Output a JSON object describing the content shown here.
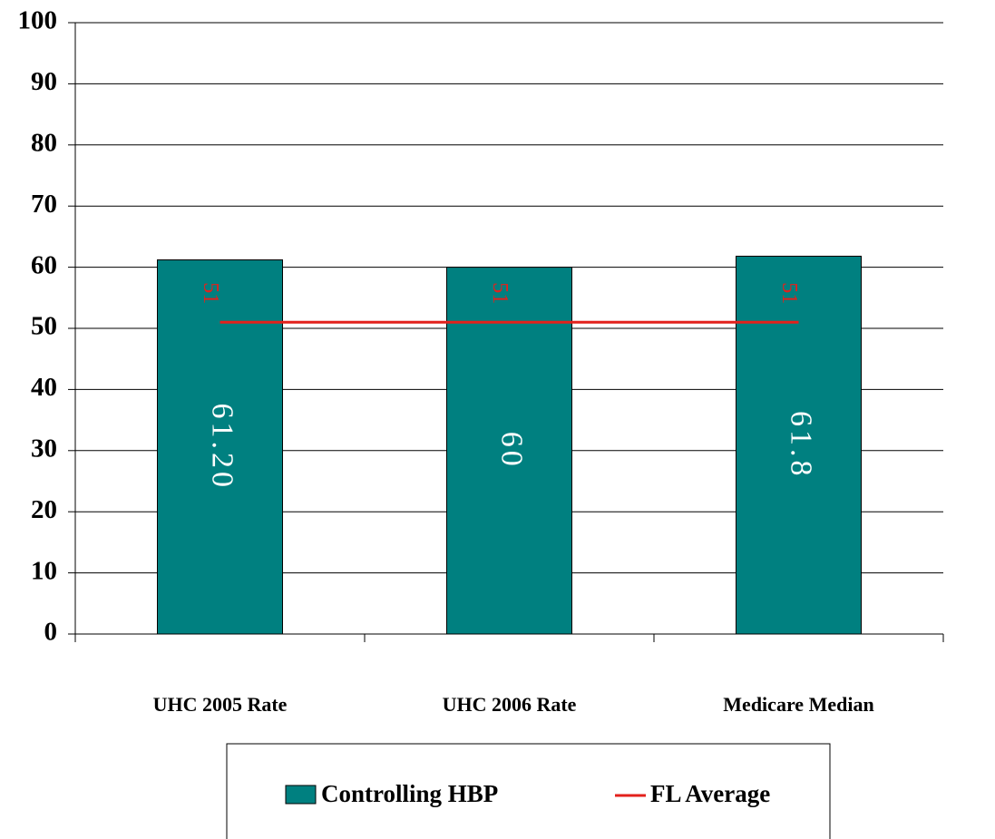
{
  "chart_data": {
    "type": "bar",
    "categories": [
      "UHC 2005 Rate",
      "UHC 2006 Rate",
      "Medicare Median"
    ],
    "series": [
      {
        "name": "Controlling HBP",
        "color": "#008080",
        "values": [
          61.2,
          60,
          61.8
        ],
        "value_labels": [
          "61.20",
          "60",
          "61.8"
        ]
      },
      {
        "name": "FL Average",
        "color": "#e3211c",
        "type": "line",
        "values": [
          51,
          51,
          51
        ]
      }
    ],
    "ylim": [
      0,
      100
    ],
    "yticks": [
      0,
      10,
      20,
      30,
      40,
      50,
      60,
      70,
      80,
      90,
      100
    ],
    "grid": true,
    "legend": "bottom"
  }
}
